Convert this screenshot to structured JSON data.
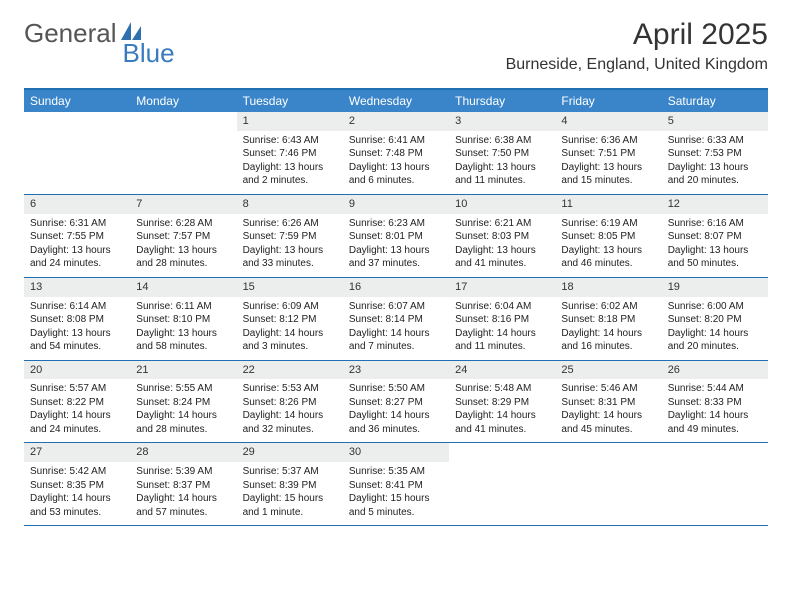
{
  "logo": {
    "part1": "General",
    "part2": "Blue"
  },
  "title": "April 2025",
  "location": "Burneside, England, United Kingdom",
  "colors": {
    "header_bg": "#3a85c9",
    "rule": "#1f6fb2",
    "daynum_bg": "#eceeee",
    "logo_blue": "#3a7bbf"
  },
  "days_of_week": [
    "Sunday",
    "Monday",
    "Tuesday",
    "Wednesday",
    "Thursday",
    "Friday",
    "Saturday"
  ],
  "weeks": [
    [
      {
        "n": "",
        "sr": "",
        "ss": "",
        "dl": ""
      },
      {
        "n": "",
        "sr": "",
        "ss": "",
        "dl": ""
      },
      {
        "n": "1",
        "sr": "Sunrise: 6:43 AM",
        "ss": "Sunset: 7:46 PM",
        "dl": "Daylight: 13 hours and 2 minutes."
      },
      {
        "n": "2",
        "sr": "Sunrise: 6:41 AM",
        "ss": "Sunset: 7:48 PM",
        "dl": "Daylight: 13 hours and 6 minutes."
      },
      {
        "n": "3",
        "sr": "Sunrise: 6:38 AM",
        "ss": "Sunset: 7:50 PM",
        "dl": "Daylight: 13 hours and 11 minutes."
      },
      {
        "n": "4",
        "sr": "Sunrise: 6:36 AM",
        "ss": "Sunset: 7:51 PM",
        "dl": "Daylight: 13 hours and 15 minutes."
      },
      {
        "n": "5",
        "sr": "Sunrise: 6:33 AM",
        "ss": "Sunset: 7:53 PM",
        "dl": "Daylight: 13 hours and 20 minutes."
      }
    ],
    [
      {
        "n": "6",
        "sr": "Sunrise: 6:31 AM",
        "ss": "Sunset: 7:55 PM",
        "dl": "Daylight: 13 hours and 24 minutes."
      },
      {
        "n": "7",
        "sr": "Sunrise: 6:28 AM",
        "ss": "Sunset: 7:57 PM",
        "dl": "Daylight: 13 hours and 28 minutes."
      },
      {
        "n": "8",
        "sr": "Sunrise: 6:26 AM",
        "ss": "Sunset: 7:59 PM",
        "dl": "Daylight: 13 hours and 33 minutes."
      },
      {
        "n": "9",
        "sr": "Sunrise: 6:23 AM",
        "ss": "Sunset: 8:01 PM",
        "dl": "Daylight: 13 hours and 37 minutes."
      },
      {
        "n": "10",
        "sr": "Sunrise: 6:21 AM",
        "ss": "Sunset: 8:03 PM",
        "dl": "Daylight: 13 hours and 41 minutes."
      },
      {
        "n": "11",
        "sr": "Sunrise: 6:19 AM",
        "ss": "Sunset: 8:05 PM",
        "dl": "Daylight: 13 hours and 46 minutes."
      },
      {
        "n": "12",
        "sr": "Sunrise: 6:16 AM",
        "ss": "Sunset: 8:07 PM",
        "dl": "Daylight: 13 hours and 50 minutes."
      }
    ],
    [
      {
        "n": "13",
        "sr": "Sunrise: 6:14 AM",
        "ss": "Sunset: 8:08 PM",
        "dl": "Daylight: 13 hours and 54 minutes."
      },
      {
        "n": "14",
        "sr": "Sunrise: 6:11 AM",
        "ss": "Sunset: 8:10 PM",
        "dl": "Daylight: 13 hours and 58 minutes."
      },
      {
        "n": "15",
        "sr": "Sunrise: 6:09 AM",
        "ss": "Sunset: 8:12 PM",
        "dl": "Daylight: 14 hours and 3 minutes."
      },
      {
        "n": "16",
        "sr": "Sunrise: 6:07 AM",
        "ss": "Sunset: 8:14 PM",
        "dl": "Daylight: 14 hours and 7 minutes."
      },
      {
        "n": "17",
        "sr": "Sunrise: 6:04 AM",
        "ss": "Sunset: 8:16 PM",
        "dl": "Daylight: 14 hours and 11 minutes."
      },
      {
        "n": "18",
        "sr": "Sunrise: 6:02 AM",
        "ss": "Sunset: 8:18 PM",
        "dl": "Daylight: 14 hours and 16 minutes."
      },
      {
        "n": "19",
        "sr": "Sunrise: 6:00 AM",
        "ss": "Sunset: 8:20 PM",
        "dl": "Daylight: 14 hours and 20 minutes."
      }
    ],
    [
      {
        "n": "20",
        "sr": "Sunrise: 5:57 AM",
        "ss": "Sunset: 8:22 PM",
        "dl": "Daylight: 14 hours and 24 minutes."
      },
      {
        "n": "21",
        "sr": "Sunrise: 5:55 AM",
        "ss": "Sunset: 8:24 PM",
        "dl": "Daylight: 14 hours and 28 minutes."
      },
      {
        "n": "22",
        "sr": "Sunrise: 5:53 AM",
        "ss": "Sunset: 8:26 PM",
        "dl": "Daylight: 14 hours and 32 minutes."
      },
      {
        "n": "23",
        "sr": "Sunrise: 5:50 AM",
        "ss": "Sunset: 8:27 PM",
        "dl": "Daylight: 14 hours and 36 minutes."
      },
      {
        "n": "24",
        "sr": "Sunrise: 5:48 AM",
        "ss": "Sunset: 8:29 PM",
        "dl": "Daylight: 14 hours and 41 minutes."
      },
      {
        "n": "25",
        "sr": "Sunrise: 5:46 AM",
        "ss": "Sunset: 8:31 PM",
        "dl": "Daylight: 14 hours and 45 minutes."
      },
      {
        "n": "26",
        "sr": "Sunrise: 5:44 AM",
        "ss": "Sunset: 8:33 PM",
        "dl": "Daylight: 14 hours and 49 minutes."
      }
    ],
    [
      {
        "n": "27",
        "sr": "Sunrise: 5:42 AM",
        "ss": "Sunset: 8:35 PM",
        "dl": "Daylight: 14 hours and 53 minutes."
      },
      {
        "n": "28",
        "sr": "Sunrise: 5:39 AM",
        "ss": "Sunset: 8:37 PM",
        "dl": "Daylight: 14 hours and 57 minutes."
      },
      {
        "n": "29",
        "sr": "Sunrise: 5:37 AM",
        "ss": "Sunset: 8:39 PM",
        "dl": "Daylight: 15 hours and 1 minute."
      },
      {
        "n": "30",
        "sr": "Sunrise: 5:35 AM",
        "ss": "Sunset: 8:41 PM",
        "dl": "Daylight: 15 hours and 5 minutes."
      },
      {
        "n": "",
        "sr": "",
        "ss": "",
        "dl": ""
      },
      {
        "n": "",
        "sr": "",
        "ss": "",
        "dl": ""
      },
      {
        "n": "",
        "sr": "",
        "ss": "",
        "dl": ""
      }
    ]
  ]
}
